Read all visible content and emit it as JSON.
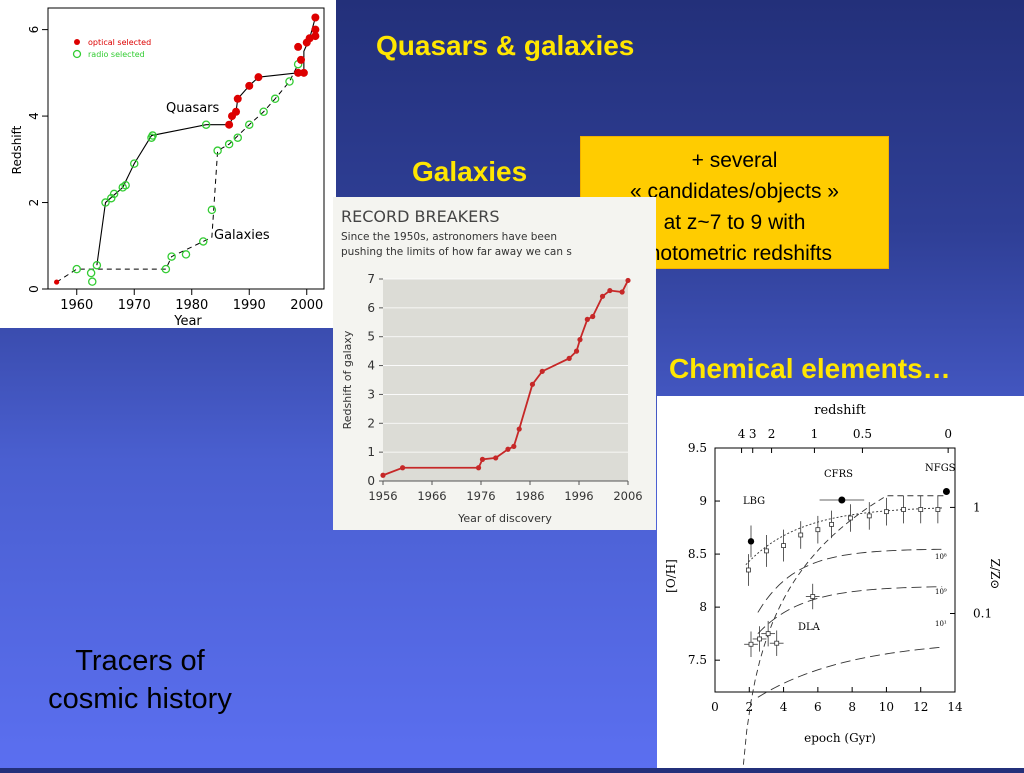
{
  "slide": {
    "title": "Quasars & galaxies",
    "galaxies_label": "Galaxies",
    "chemical_label": "Chemical elements…",
    "note_lines": [
      "+ several",
      "« candidates/objects »",
      "at z~7 to 9 with",
      "photometric redshifts"
    ],
    "tracers_lines": [
      "Tracers of",
      "cosmic history"
    ]
  },
  "colors": {
    "title_yellow": "#ffe600",
    "note_bg": "#ffcc00",
    "optical": "#dd0000",
    "radio": "#33cc33",
    "record_line": "#c62828"
  },
  "chart_data": [
    {
      "type": "scatter",
      "xlabel": "Year",
      "ylabel": "Redshift",
      "xlim": [
        1955,
        2003
      ],
      "ylim": [
        0,
        6.5
      ],
      "xticks": [
        "1960",
        "1970",
        "1980",
        "1990",
        "2000"
      ],
      "yticks": [
        "0",
        "2",
        "4",
        "6"
      ],
      "legend": [
        "optical selected",
        "radio selected"
      ],
      "legend_position": "top-left",
      "annotations": [
        "Quasars",
        "Galaxies"
      ],
      "series": [
        {
          "name": "optical selected",
          "points": [
            [
              1956.5,
              0.16
            ],
            [
              1986.5,
              3.8
            ],
            [
              1987,
              4.0
            ],
            [
              1987.7,
              4.1
            ],
            [
              1988,
              4.4
            ],
            [
              1990,
              4.7
            ],
            [
              1991.6,
              4.9
            ],
            [
              1998.5,
              5.0
            ],
            [
              1999.5,
              5.0
            ],
            [
              1999,
              5.3
            ],
            [
              1998.5,
              5.6
            ],
            [
              2000,
              5.7
            ],
            [
              2000.5,
              5.8
            ],
            [
              2001.5,
              5.85
            ],
            [
              2001.5,
              6.0
            ],
            [
              2001.5,
              6.28
            ]
          ]
        },
        {
          "name": "radio selected",
          "points": [
            [
              1960,
              0.46
            ],
            [
              1962.5,
              0.37
            ],
            [
              1962.7,
              0.17
            ],
            [
              1963.5,
              0.55
            ],
            [
              1965,
              2.0
            ],
            [
              1966,
              2.1
            ],
            [
              1966.5,
              2.2
            ],
            [
              1968,
              2.35
            ],
            [
              1968.5,
              2.4
            ],
            [
              1970,
              2.9
            ],
            [
              1973,
              3.5
            ],
            [
              1973.2,
              3.55
            ],
            [
              1982.5,
              3.8
            ],
            [
              1975.5,
              0.46
            ],
            [
              1976.5,
              0.75
            ],
            [
              1979,
              0.8
            ],
            [
              1982,
              1.1
            ],
            [
              1983.5,
              1.83
            ],
            [
              1984.5,
              3.2
            ],
            [
              1986.5,
              3.35
            ],
            [
              1988,
              3.5
            ],
            [
              1990,
              3.8
            ],
            [
              1992.5,
              4.1
            ],
            [
              1994.5,
              4.4
            ],
            [
              1997,
              4.8
            ],
            [
              1998.5,
              5.2
            ]
          ]
        }
      ],
      "quasar_track": [
        [
          1963.5,
          0.55
        ],
        [
          1965,
          2.0
        ],
        [
          1968,
          2.35
        ],
        [
          1970,
          2.9
        ],
        [
          1973,
          3.55
        ],
        [
          1982.5,
          3.8
        ],
        [
          1986.5,
          3.8
        ],
        [
          1987.7,
          4.1
        ],
        [
          1988,
          4.4
        ],
        [
          1990,
          4.7
        ],
        [
          1991.6,
          4.9
        ],
        [
          1998.5,
          5.0
        ],
        [
          1999.5,
          5.0
        ],
        [
          1999.5,
          5.5
        ],
        [
          2000.5,
          5.8
        ],
        [
          2001.5,
          6.28
        ]
      ],
      "galaxy_track": [
        [
          1956.5,
          0.16
        ],
        [
          1960,
          0.46
        ],
        [
          1975.5,
          0.46
        ],
        [
          1976.5,
          0.75
        ],
        [
          1982,
          1.1
        ],
        [
          1983.5,
          1.2
        ],
        [
          1984.5,
          3.2
        ],
        [
          1986.5,
          3.35
        ],
        [
          1990,
          3.8
        ],
        [
          1992.5,
          4.1
        ],
        [
          1994.5,
          4.4
        ],
        [
          1997,
          4.8
        ],
        [
          1998.5,
          5.2
        ]
      ]
    },
    {
      "type": "line",
      "title": "RECORD BREAKERS",
      "subtitle": "Since the 1950s, astronomers have been pushing the limits of how far away we can s",
      "xlabel": "Year of discovery",
      "ylabel": "Redshift of galaxy",
      "xlim": [
        1956,
        2006
      ],
      "ylim": [
        0,
        7
      ],
      "xticks": [
        "1956",
        "1966",
        "1976",
        "1986",
        "1996",
        "2006"
      ],
      "yticks": [
        "0",
        "1",
        "2",
        "3",
        "4",
        "5",
        "6",
        "7"
      ],
      "x": [
        1956,
        1960,
        1975.5,
        1976.3,
        1979,
        1981.5,
        1982.7,
        1983.8,
        1986.5,
        1988.5,
        1994,
        1995.5,
        1996.2,
        1997.7,
        1998.8,
        2000.8,
        2002.3,
        2004.8,
        2006
      ],
      "y": [
        0.2,
        0.46,
        0.46,
        0.75,
        0.8,
        1.1,
        1.2,
        1.8,
        3.35,
        3.8,
        4.25,
        4.5,
        4.9,
        5.6,
        5.7,
        6.4,
        6.6,
        6.55,
        6.95
      ]
    },
    {
      "type": "scatter",
      "xlabel": "epoch (Gyr)",
      "ylabel": "[O/H]",
      "x2label": "redshift",
      "y2label": "Z/Z⊙",
      "xlim": [
        0,
        14
      ],
      "ylim": [
        7.2,
        9.5
      ],
      "xticks": [
        "0",
        "2",
        "4",
        "6",
        "8",
        "10",
        "12",
        "14"
      ],
      "yticks": [
        "7.5",
        "8",
        "8.5",
        "9",
        "9.5"
      ],
      "top_ticks": [
        "4",
        "3",
        "2",
        "1",
        "0.5",
        "0"
      ],
      "right_ticks": [
        "1",
        "0.1"
      ],
      "curve_labels": [
        "10⁸",
        "10⁹",
        "10¹"
      ],
      "annotations": [
        "LBG",
        "CFRS",
        "NFGS",
        "DLA"
      ],
      "series": [
        {
          "name": "LBG",
          "points": [
            [
              2.1,
              8.62
            ],
            [
              1.95,
              8.35
            ],
            [
              3,
              8.53
            ],
            [
              4,
              8.58
            ]
          ]
        },
        {
          "name": "CFRS",
          "points": [
            [
              7.4,
              9.01
            ]
          ]
        },
        {
          "name": "NFGS",
          "points": [
            [
              13.5,
              9.09
            ]
          ]
        },
        {
          "name": "DLA",
          "points": [
            [
              2.1,
              7.65
            ],
            [
              2.6,
              7.7
            ],
            [
              3.1,
              7.75
            ],
            [
              3.6,
              7.66
            ],
            [
              5.7,
              8.1
            ]
          ]
        },
        {
          "name": "",
          "points": [
            [
              5,
              8.68
            ],
            [
              6,
              8.73
            ],
            [
              6.8,
              8.78
            ],
            [
              7.9,
              8.84
            ],
            [
              9,
              8.86
            ],
            [
              10,
              8.9
            ],
            [
              11,
              8.92
            ],
            [
              12,
              8.92
            ],
            [
              13,
              8.92
            ]
          ]
        }
      ]
    }
  ]
}
